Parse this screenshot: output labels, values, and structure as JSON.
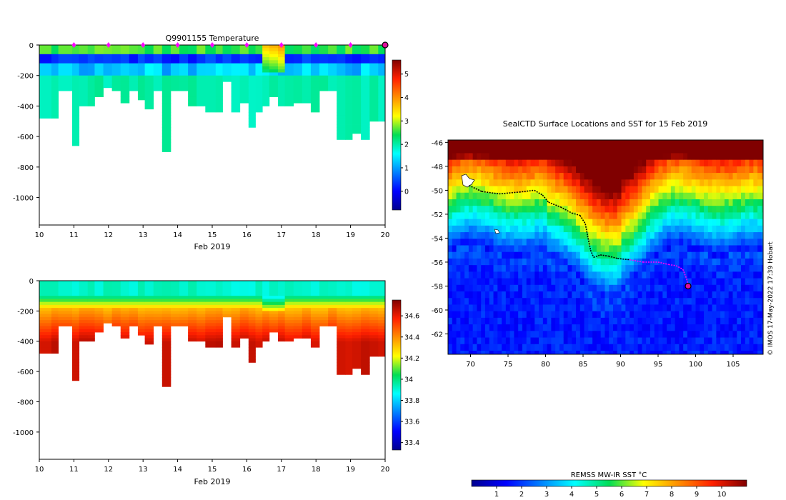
{
  "chart_data": [
    {
      "type": "heatmap",
      "title": "Q9901155  Temperature",
      "xlabel": "Feb 2019",
      "ylabel": "",
      "xlim": [
        10,
        20
      ],
      "ylim": [
        -1180,
        0
      ],
      "x_ticks": [
        "10",
        "11",
        "12",
        "13",
        "14",
        "15",
        "16",
        "17",
        "18",
        "19",
        "20"
      ],
      "y_ticks": [
        "0",
        "-200",
        "-400",
        "-600",
        "-800",
        "-1000"
      ],
      "profile_days": [
        10.0,
        10.35,
        10.55,
        10.95,
        11.15,
        11.4,
        11.6,
        11.85,
        12.1,
        12.35,
        12.6,
        12.85,
        13.05,
        13.3,
        13.55,
        13.8,
        14.05,
        14.3,
        14.55,
        14.8,
        15.1,
        15.3,
        15.55,
        15.8,
        16.05,
        16.25,
        16.45,
        16.65,
        16.9,
        17.1,
        17.35,
        17.6,
        17.85,
        18.1,
        18.35,
        18.6,
        18.85,
        19.05,
        19.3,
        19.55,
        19.8,
        20.0
      ],
      "profile_max_depth_m": [
        480,
        480,
        290,
        650,
        400,
        390,
        340,
        280,
        290,
        380,
        300,
        350,
        410,
        300,
        700,
        300,
        300,
        390,
        400,
        430,
        430,
        240,
        440,
        380,
        540,
        440,
        400,
        340,
        390,
        390,
        380,
        370,
        430,
        300,
        300,
        620,
        620,
        570,
        610,
        500,
        500,
        500
      ],
      "markers_days": [
        11,
        12,
        13,
        14,
        15,
        16,
        17,
        18,
        19
      ],
      "highlight_day": 20,
      "colorbar": {
        "min": -0.8,
        "max": 5.6,
        "ticks": [
          "0",
          "1",
          "2",
          "3",
          "4",
          "5"
        ]
      }
    },
    {
      "type": "heatmap",
      "title": "",
      "xlabel": "Feb 2019",
      "ylabel": "",
      "xlim": [
        10,
        20
      ],
      "ylim": [
        -1180,
        0
      ],
      "x_ticks": [
        "10",
        "11",
        "12",
        "13",
        "14",
        "15",
        "16",
        "17",
        "18",
        "19",
        "20"
      ],
      "y_ticks": [
        "0",
        "-200",
        "-400",
        "-600",
        "-800",
        "-1000"
      ],
      "colorbar": {
        "min": 33.33,
        "max": 34.75,
        "ticks": [
          "33.4",
          "33.6",
          "33.8",
          "34",
          "34.2",
          "34.4",
          "34.6"
        ]
      }
    },
    {
      "type": "heatmap",
      "title": "SealCTD Surface Locations and SST for 15 Feb 2019",
      "xlabel": "",
      "ylabel": "",
      "xlim": [
        67,
        109
      ],
      "ylim": [
        -63.7,
        -45.8
      ],
      "x_ticks": [
        "70",
        "75",
        "80",
        "85",
        "90",
        "95",
        "100",
        "105"
      ],
      "y_ticks": [
        "-46",
        "-48",
        "-50",
        "-52",
        "-54",
        "-56",
        "-58",
        "-60",
        "-62"
      ],
      "track_lon": [
        69.8,
        71.5,
        73.8,
        76.5,
        78.5,
        79.6,
        80.4,
        82.0,
        83.5,
        84.6,
        85.3,
        85.6,
        86.0,
        86.4,
        87.3,
        88.4,
        89.6,
        91.2,
        93.0,
        95.0,
        96.4,
        97.4,
        98.3,
        98.8,
        99.0
      ],
      "track_lat": [
        -49.6,
        -50.1,
        -50.3,
        -50.15,
        -50.0,
        -50.4,
        -51.0,
        -51.4,
        -51.9,
        -52.1,
        -52.8,
        -53.8,
        -55.0,
        -55.6,
        -55.4,
        -55.5,
        -55.7,
        -55.8,
        -56.0,
        -56.0,
        -56.2,
        -56.3,
        -56.6,
        -57.4,
        -58.0
      ],
      "highlight_track_start_index": 17,
      "current_position": [
        99.0,
        -58.0
      ],
      "colorbar": {
        "label": "REMSS MW-IR SST °C",
        "min": 0,
        "max": 11,
        "ticks": [
          "1",
          "2",
          "3",
          "4",
          "5",
          "6",
          "7",
          "8",
          "9",
          "10"
        ]
      },
      "credit": "© IMOS 17-May-2022 17:39 Hobart"
    }
  ],
  "colors": {
    "profile_marker": "#ff00ff",
    "track": "#000000",
    "track_highlight": "#ff00ff",
    "current_position": "#e0109a"
  }
}
